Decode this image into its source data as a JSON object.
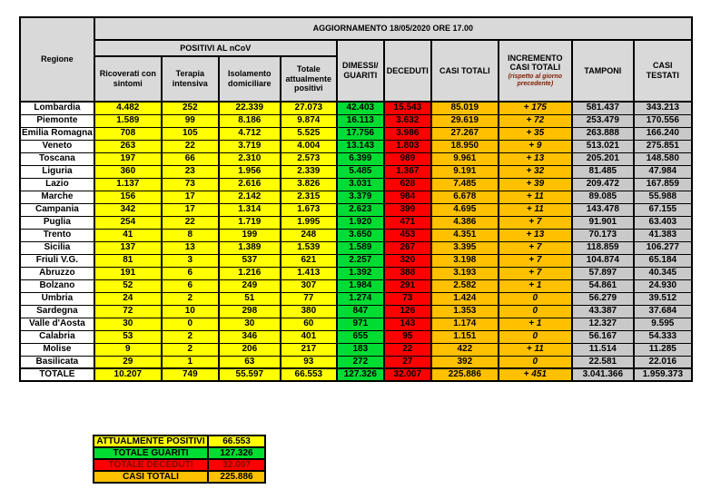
{
  "title": "AGGIORNAMENTO 18/05/2020 ORE 17.00",
  "columns": {
    "regione": "Regione",
    "positivi_group": "POSITIVI AL nCoV",
    "ricoverati": "Ricoverati con sintomi",
    "terapia": "Terapia intensiva",
    "isolamento": "Isolamento domiciliare",
    "totale_positivi": "Totale attualmente positivi",
    "dimessi": "DIMESSI/ GUARITI",
    "deceduti": "DECEDUTI",
    "casi_totali": "CASI TOTALI",
    "incremento": "INCREMENTO CASI TOTALI",
    "incremento_note": "(rispetto al giorno precedente)",
    "tamponi": "TAMPONI",
    "casi_testati": "CASI TESTATI"
  },
  "rows": [
    {
      "region": "Lombardia",
      "cells": [
        "4.482",
        "252",
        "22.339",
        "27.073",
        "42.403",
        "15.543",
        "85.019",
        "+ 175",
        "581.437",
        "343.213"
      ]
    },
    {
      "region": "Piemonte",
      "cells": [
        "1.589",
        "99",
        "8.186",
        "9.874",
        "16.113",
        "3.632",
        "29.619",
        "+ 72",
        "253.479",
        "170.556"
      ]
    },
    {
      "region": "Emilia Romagna",
      "cells": [
        "708",
        "105",
        "4.712",
        "5.525",
        "17.756",
        "3.986",
        "27.267",
        "+ 35",
        "263.888",
        "166.240"
      ]
    },
    {
      "region": "Veneto",
      "cells": [
        "263",
        "22",
        "3.719",
        "4.004",
        "13.143",
        "1.803",
        "18.950",
        "+ 9",
        "513.021",
        "275.851"
      ]
    },
    {
      "region": "Toscana",
      "cells": [
        "197",
        "66",
        "2.310",
        "2.573",
        "6.399",
        "989",
        "9.961",
        "+ 13",
        "205.201",
        "148.580"
      ]
    },
    {
      "region": "Liguria",
      "cells": [
        "360",
        "23",
        "1.956",
        "2.339",
        "5.485",
        "1.367",
        "9.191",
        "+ 32",
        "81.485",
        "47.984"
      ]
    },
    {
      "region": "Lazio",
      "cells": [
        "1.137",
        "73",
        "2.616",
        "3.826",
        "3.031",
        "628",
        "7.485",
        "+ 39",
        "209.472",
        "167.859"
      ]
    },
    {
      "region": "Marche",
      "cells": [
        "156",
        "17",
        "2.142",
        "2.315",
        "3.379",
        "984",
        "6.678",
        "+ 11",
        "89.085",
        "55.988"
      ]
    },
    {
      "region": "Campania",
      "cells": [
        "342",
        "17",
        "1.314",
        "1.673",
        "2.623",
        "399",
        "4.695",
        "+ 11",
        "143.478",
        "67.155"
      ]
    },
    {
      "region": "Puglia",
      "cells": [
        "254",
        "22",
        "1.719",
        "1.995",
        "1.920",
        "471",
        "4.386",
        "+ 7",
        "91.901",
        "63.403"
      ]
    },
    {
      "region": "Trento",
      "cells": [
        "41",
        "8",
        "199",
        "248",
        "3.650",
        "453",
        "4.351",
        "+ 13",
        "70.173",
        "41.383"
      ]
    },
    {
      "region": "Sicilia",
      "cells": [
        "137",
        "13",
        "1.389",
        "1.539",
        "1.589",
        "267",
        "3.395",
        "+ 7",
        "118.859",
        "106.277"
      ]
    },
    {
      "region": "Friuli V.G.",
      "cells": [
        "81",
        "3",
        "537",
        "621",
        "2.257",
        "320",
        "3.198",
        "+ 7",
        "104.874",
        "65.184"
      ]
    },
    {
      "region": "Abruzzo",
      "cells": [
        "191",
        "6",
        "1.216",
        "1.413",
        "1.392",
        "388",
        "3.193",
        "+ 7",
        "57.897",
        "40.345"
      ]
    },
    {
      "region": "Bolzano",
      "cells": [
        "52",
        "6",
        "249",
        "307",
        "1.984",
        "291",
        "2.582",
        "+ 1",
        "54.861",
        "24.930"
      ]
    },
    {
      "region": "Umbria",
      "cells": [
        "24",
        "2",
        "51",
        "77",
        "1.274",
        "73",
        "1.424",
        "0",
        "56.279",
        "39.512"
      ]
    },
    {
      "region": "Sardegna",
      "cells": [
        "72",
        "10",
        "298",
        "380",
        "847",
        "126",
        "1.353",
        "0",
        "43.387",
        "37.684"
      ]
    },
    {
      "region": "Valle d'Aosta",
      "cells": [
        "30",
        "0",
        "30",
        "60",
        "971",
        "143",
        "1.174",
        "+ 1",
        "12.327",
        "9.595"
      ]
    },
    {
      "region": "Calabria",
      "cells": [
        "53",
        "2",
        "346",
        "401",
        "655",
        "95",
        "1.151",
        "0",
        "56.167",
        "54.333"
      ]
    },
    {
      "region": "Molise",
      "cells": [
        "9",
        "2",
        "206",
        "217",
        "183",
        "22",
        "422",
        "+ 11",
        "11.514",
        "11.285"
      ]
    },
    {
      "region": "Basilicata",
      "cells": [
        "29",
        "1",
        "63",
        "93",
        "272",
        "27",
        "392",
        "0",
        "22.581",
        "22.016"
      ]
    }
  ],
  "totale": {
    "region": "TOTALE",
    "cells": [
      "10.207",
      "749",
      "55.597",
      "66.553",
      "127.326",
      "32.007",
      "225.886",
      "+ 451",
      "3.041.366",
      "1.959.373"
    ]
  },
  "legend": [
    {
      "label": "ATTUALMENTE POSITIVI",
      "value": "66.553",
      "color": "yellow"
    },
    {
      "label": "TOTALE GUARITI",
      "value": "127.326",
      "color": "green"
    },
    {
      "label": "TOTALE DECEDUTI",
      "value": "32.007",
      "color": "red"
    },
    {
      "label": "CASI TOTALI",
      "value": "225.886",
      "color": "orange"
    }
  ],
  "colors": {
    "yellow": "#ffff00",
    "green": "#00dc32",
    "red": "#ff0000",
    "red_text": "#7a0d00",
    "orange": "#ffc000",
    "header_gray": "#d9d9d9",
    "cell_gray": "#c9c9c9",
    "note_text": "#7f1d00"
  },
  "chart_data": {
    "type": "table",
    "title": "AGGIORNAMENTO 18/05/2020 ORE 17.00",
    "columns": [
      "Regione",
      "Ricoverati con sintomi",
      "Terapia intensiva",
      "Isolamento domiciliare",
      "Totale attualmente positivi",
      "Dimessi/Guariti",
      "Deceduti",
      "Casi totali",
      "Incremento casi totali (rispetto al giorno precedente)",
      "Tamponi",
      "Casi testati"
    ],
    "rows": [
      [
        "Lombardia",
        4482,
        252,
        22339,
        27073,
        42403,
        15543,
        85019,
        175,
        581437,
        343213
      ],
      [
        "Piemonte",
        1589,
        99,
        8186,
        9874,
        16113,
        3632,
        29619,
        72,
        253479,
        170556
      ],
      [
        "Emilia Romagna",
        708,
        105,
        4712,
        5525,
        17756,
        3986,
        27267,
        35,
        263888,
        166240
      ],
      [
        "Veneto",
        263,
        22,
        3719,
        4004,
        13143,
        1803,
        18950,
        9,
        513021,
        275851
      ],
      [
        "Toscana",
        197,
        66,
        2310,
        2573,
        6399,
        989,
        9961,
        13,
        205201,
        148580
      ],
      [
        "Liguria",
        360,
        23,
        1956,
        2339,
        5485,
        1367,
        9191,
        32,
        81485,
        47984
      ],
      [
        "Lazio",
        1137,
        73,
        2616,
        3826,
        3031,
        628,
        7485,
        39,
        209472,
        167859
      ],
      [
        "Marche",
        156,
        17,
        2142,
        2315,
        3379,
        984,
        6678,
        11,
        89085,
        55988
      ],
      [
        "Campania",
        342,
        17,
        1314,
        1673,
        2623,
        399,
        4695,
        11,
        143478,
        67155
      ],
      [
        "Puglia",
        254,
        22,
        1719,
        1995,
        1920,
        471,
        4386,
        7,
        91901,
        63403
      ],
      [
        "Trento",
        41,
        8,
        199,
        248,
        3650,
        453,
        4351,
        13,
        70173,
        41383
      ],
      [
        "Sicilia",
        137,
        13,
        1389,
        1539,
        1589,
        267,
        3395,
        7,
        118859,
        106277
      ],
      [
        "Friuli V.G.",
        81,
        3,
        537,
        621,
        2257,
        320,
        3198,
        7,
        104874,
        65184
      ],
      [
        "Abruzzo",
        191,
        6,
        1216,
        1413,
        1392,
        388,
        3193,
        7,
        57897,
        40345
      ],
      [
        "Bolzano",
        52,
        6,
        249,
        307,
        1984,
        291,
        2582,
        1,
        54861,
        24930
      ],
      [
        "Umbria",
        24,
        2,
        51,
        77,
        1274,
        73,
        1424,
        0,
        56279,
        39512
      ],
      [
        "Sardegna",
        72,
        10,
        298,
        380,
        847,
        126,
        1353,
        0,
        43387,
        37684
      ],
      [
        "Valle d'Aosta",
        30,
        0,
        30,
        60,
        971,
        143,
        1174,
        1,
        12327,
        9595
      ],
      [
        "Calabria",
        53,
        2,
        346,
        401,
        655,
        95,
        1151,
        0,
        56167,
        54333
      ],
      [
        "Molise",
        9,
        2,
        206,
        217,
        183,
        22,
        422,
        11,
        11514,
        11285
      ],
      [
        "Basilicata",
        29,
        1,
        63,
        93,
        272,
        27,
        392,
        0,
        22581,
        22016
      ],
      [
        "TOTALE",
        10207,
        749,
        55597,
        66553,
        127326,
        32007,
        225886,
        451,
        3041366,
        1959373
      ]
    ]
  }
}
